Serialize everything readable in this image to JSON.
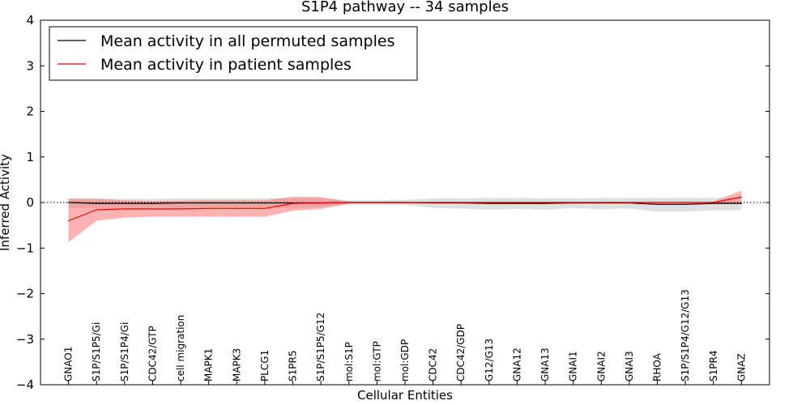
{
  "chart_data": {
    "type": "line",
    "title": "S1P4 pathway -- 34 samples",
    "xlabel": "Cellular Entities",
    "ylabel": "Inferred Activity",
    "ylim": [
      -4,
      4
    ],
    "yticks": [
      -4,
      -3,
      -2,
      -1,
      0,
      1,
      2,
      3,
      4
    ],
    "ytick_labels": [
      "−4",
      "−3",
      "−2",
      "−1",
      "0",
      "1",
      "2",
      "3",
      "4"
    ],
    "legend_position": "top-left",
    "categories": [
      "GNAO1",
      "S1P/S1P5/Gi",
      "S1P/S1P4/Gi",
      "CDC42/GTP",
      "cell migration",
      "MAPK1",
      "MAPK3",
      "PLCG1",
      "S1PR5",
      "S1P/S1P5/G12",
      "mol:S1P",
      "mol:GTP",
      "mol:GDP",
      "CDC42",
      "CDC42/GDP",
      "G12/G13",
      "GNA12",
      "GNA13",
      "GNAI1",
      "GNAI2",
      "GNAI3",
      "RHOA",
      "S1P/S1P4/G12/G13",
      "S1PR4",
      "GNAZ"
    ],
    "series": [
      {
        "name": "Mean activity in all permuted samples",
        "color": "#000000",
        "band_color": "#bbbbbb",
        "values": [
          0.0,
          -0.02,
          -0.02,
          -0.02,
          -0.01,
          -0.01,
          -0.01,
          -0.01,
          -0.01,
          -0.01,
          0.0,
          0.0,
          0.0,
          -0.01,
          -0.01,
          -0.02,
          -0.02,
          -0.02,
          -0.01,
          -0.01,
          -0.01,
          -0.04,
          -0.04,
          -0.02,
          -0.02
        ],
        "lower": [
          -0.13,
          -0.12,
          -0.12,
          -0.12,
          -0.12,
          -0.12,
          -0.12,
          -0.12,
          -0.12,
          -0.1,
          -0.05,
          -0.05,
          -0.05,
          -0.12,
          -0.13,
          -0.16,
          -0.14,
          -0.16,
          -0.12,
          -0.15,
          -0.13,
          -0.2,
          -0.2,
          -0.17,
          -0.17
        ],
        "upper": [
          0.1,
          0.09,
          0.08,
          0.08,
          0.09,
          0.09,
          0.09,
          0.09,
          0.09,
          0.09,
          0.05,
          0.05,
          0.06,
          0.09,
          0.09,
          0.1,
          0.1,
          0.09,
          0.09,
          0.1,
          0.1,
          0.1,
          0.1,
          0.1,
          0.12
        ]
      },
      {
        "name": "Mean activity in patient samples",
        "color": "#ff0000",
        "band_color": "#ff6666",
        "values": [
          -0.4,
          -0.16,
          -0.14,
          -0.14,
          -0.14,
          -0.13,
          -0.13,
          -0.13,
          -0.02,
          -0.01,
          0.0,
          0.0,
          0.0,
          0.0,
          0.0,
          0.0,
          0.0,
          0.0,
          0.0,
          0.0,
          0.0,
          0.0,
          0.0,
          0.0,
          0.12
        ],
        "lower": [
          -0.87,
          -0.4,
          -0.33,
          -0.31,
          -0.31,
          -0.31,
          -0.31,
          -0.31,
          -0.18,
          -0.14,
          -0.02,
          -0.02,
          -0.02,
          -0.02,
          -0.02,
          -0.02,
          -0.02,
          -0.02,
          -0.02,
          -0.02,
          -0.02,
          -0.02,
          -0.02,
          -0.02,
          -0.02
        ],
        "upper": [
          0.08,
          0.08,
          0.05,
          0.03,
          0.04,
          0.05,
          0.05,
          0.05,
          0.13,
          0.12,
          0.02,
          0.02,
          0.02,
          0.02,
          0.02,
          0.02,
          0.02,
          0.02,
          0.02,
          0.02,
          0.02,
          0.02,
          0.02,
          0.02,
          0.26
        ]
      }
    ]
  }
}
